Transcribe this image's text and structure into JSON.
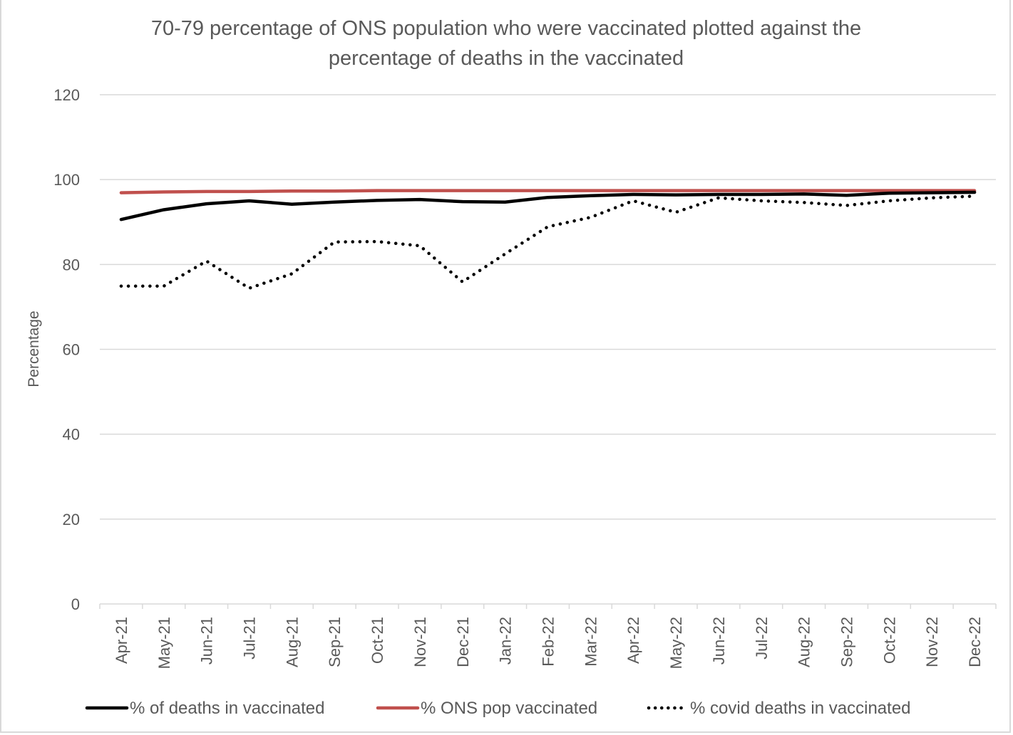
{
  "chart_data": {
    "type": "line",
    "title": [
      "70-79 percentage of ONS population who were vaccinated plotted against the",
      "percentage of deaths in the vaccinated"
    ],
    "xlabel": "",
    "ylabel": "Percentage",
    "ylim": [
      0,
      120
    ],
    "yticks": [
      0,
      20,
      40,
      60,
      80,
      100,
      120
    ],
    "grid": true,
    "legend_position": "bottom",
    "categories": [
      "Apr-21",
      "May-21",
      "Jun-21",
      "Jul-21",
      "Aug-21",
      "Sep-21",
      "Oct-21",
      "Nov-21",
      "Dec-21",
      "Jan-22",
      "Feb-22",
      "Mar-22",
      "Apr-22",
      "May-22",
      "Jun-22",
      "Jul-22",
      "Aug-22",
      "Sep-22",
      "Oct-22",
      "Nov-22",
      "Dec-22"
    ],
    "series": [
      {
        "name": "% of deaths in vaccinated",
        "color": "#000000",
        "style": "solid",
        "values": [
          90.6,
          92.9,
          94.3,
          95.0,
          94.2,
          94.7,
          95.1,
          95.3,
          94.8,
          94.7,
          95.8,
          96.2,
          96.5,
          96.4,
          96.5,
          96.5,
          96.6,
          96.3,
          96.8,
          96.9,
          97.0
        ]
      },
      {
        "name": "% ONS pop vaccinated",
        "color": "#c0504d",
        "style": "solid",
        "values": [
          96.9,
          97.1,
          97.2,
          97.2,
          97.3,
          97.3,
          97.4,
          97.4,
          97.4,
          97.4,
          97.4,
          97.4,
          97.4,
          97.4,
          97.4,
          97.4,
          97.4,
          97.4,
          97.4,
          97.4,
          97.4
        ]
      },
      {
        "name": "% covid deaths in vaccinated",
        "color": "#000000",
        "style": "dotted",
        "values": [
          74.9,
          74.9,
          80.8,
          74.4,
          77.8,
          85.3,
          85.4,
          84.4,
          75.9,
          82.5,
          88.9,
          91.1,
          95.0,
          92.3,
          95.7,
          95.0,
          94.6,
          93.9,
          95.0,
          95.7,
          96.1
        ]
      }
    ]
  }
}
